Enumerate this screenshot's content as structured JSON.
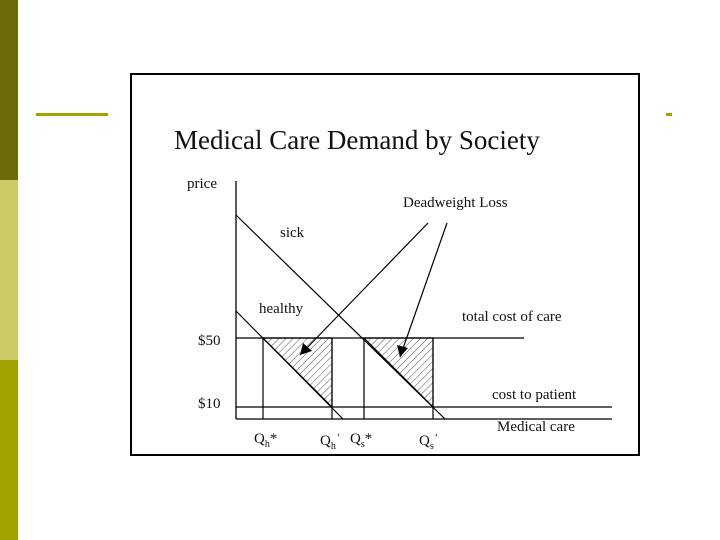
{
  "slide": {
    "title": "Medical Care Demand by Society"
  },
  "diagram": {
    "y_axis_label": "price",
    "x_axis_label": "Medical care",
    "price_labels": {
      "high": "$50",
      "low": "$10"
    },
    "curve_labels": {
      "sick": "sick",
      "healthy": "healthy"
    },
    "line_labels": {
      "total_cost": "total cost of care",
      "cost_to_patient": "cost to patient"
    },
    "annotation": "Deadweight Loss",
    "quantity_labels": {
      "qh_star": {
        "base": "Q",
        "sub": "h",
        "mark": "*"
      },
      "qh_prime": {
        "base": "Q",
        "sub": "h",
        "mark": "’"
      },
      "qs_star": {
        "base": "Q",
        "sub": "s",
        "mark": "*"
      },
      "qs_prime": {
        "base": "Q",
        "sub": "s",
        "mark": "’"
      }
    }
  },
  "colors": {
    "accent_olive_dark": "#6b6b0a",
    "accent_olive_light": "#cccc66",
    "accent_olive": "#a3a300",
    "ink": "#000000"
  }
}
